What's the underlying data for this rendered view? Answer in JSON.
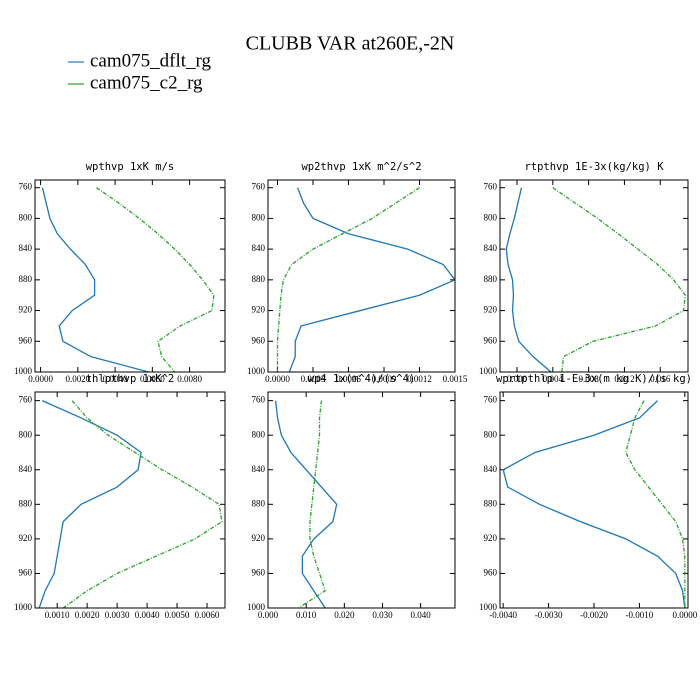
{
  "title": "CLUBB VAR at260E,-2N",
  "chart_data": [
    {
      "type": "profile",
      "title": "wpthvp   1xK m/s",
      "y": [
        760,
        780,
        800,
        820,
        840,
        860,
        880,
        900,
        920,
        940,
        960,
        980,
        1000
      ],
      "series": [
        {
          "name": "cam075_dflt_rg",
          "color": "#1f77b4",
          "linestyle": "solid",
          "values": [
            0.0001,
            0.0003,
            0.0005,
            0.0009,
            0.0016,
            0.0024,
            0.0029,
            0.0029,
            0.0017,
            0.001,
            0.0012,
            0.0027,
            0.0058
          ]
        },
        {
          "name": "cam075_c2_rg",
          "color": "#2ca02c",
          "linestyle": "dashed",
          "values": [
            0.003,
            0.0042,
            0.0053,
            0.0063,
            0.0072,
            0.008,
            0.0087,
            0.0093,
            0.0092,
            0.0075,
            0.0063,
            0.0065,
            0.0072
          ]
        }
      ],
      "xlim": [
        -0.0003,
        0.0099
      ],
      "xticks": [
        {
          "value": 0,
          "label": "0.0000"
        },
        {
          "value": 0.002,
          "label": "0.0020"
        },
        {
          "value": 0.004,
          "label": "0.0040"
        },
        {
          "value": 0.006,
          "label": "0.0060"
        },
        {
          "value": 0.008,
          "label": "0.0080"
        }
      ],
      "ylim": [
        1000,
        750
      ],
      "yticks": [
        760,
        800,
        840,
        880,
        920,
        960,
        1000
      ]
    },
    {
      "type": "profile",
      "title": "wp2thvp   1xK m^2/s^2",
      "y": [
        760,
        780,
        800,
        820,
        840,
        860,
        880,
        900,
        920,
        940,
        960,
        980,
        1000
      ],
      "series": [
        {
          "name": "cam075_dflt_rg",
          "color": "#1f77b4",
          "linestyle": "solid",
          "values": [
            0.00017,
            0.00022,
            0.0003,
            0.0006,
            0.0011,
            0.0014,
            0.0015,
            0.0012,
            0.0007,
            0.0002,
            0.00015,
            0.00015,
            0.0001
          ]
        },
        {
          "name": "cam075_c2_rg",
          "color": "#2ca02c",
          "linestyle": "dashed",
          "values": [
            0.0012,
            0.001,
            0.0008,
            0.00055,
            0.0003,
            0.00012,
            5e-05,
            3e-05,
            2e-05,
            1e-05,
            0,
            0,
            0
          ]
        }
      ],
      "xlim": [
        -8e-05,
        0.0015
      ],
      "xticks": [
        {
          "value": 0,
          "label": "0.0000"
        },
        {
          "value": 0.0003,
          "label": "0.0003"
        },
        {
          "value": 0.0006,
          "label": "0.0006"
        },
        {
          "value": 0.0009,
          "label": "0.0009"
        },
        {
          "value": 0.0012,
          "label": "0.0012"
        },
        {
          "value": 0.0015,
          "label": "0.0015"
        }
      ],
      "ylim": [
        1000,
        750
      ],
      "yticks": [
        760,
        800,
        840,
        880,
        920,
        960,
        1000
      ]
    },
    {
      "type": "profile",
      "title": "rtpthvp   1E-3x(kg/kg) K",
      "y": [
        760,
        780,
        800,
        820,
        840,
        860,
        880,
        900,
        920,
        940,
        960,
        980,
        1000
      ],
      "series": [
        {
          "name": "cam075_dflt_rg",
          "color": "#1f77b4",
          "linestyle": "solid",
          "values": [
            0.0005,
            0.0001,
            -0.0003,
            -0.0008,
            -0.0012,
            -0.001,
            -0.0005,
            -0.0004,
            -0.0005,
            -0.0003,
            0.0002,
            0.0018,
            0.0038
          ]
        },
        {
          "name": "cam075_c2_rg",
          "color": "#2ca02c",
          "linestyle": "dashed",
          "values": [
            0.004,
            0.0065,
            0.009,
            0.0113,
            0.0135,
            0.0157,
            0.0175,
            0.0188,
            0.0186,
            0.0155,
            0.0085,
            0.0052,
            0.005
          ]
        }
      ],
      "xlim": [
        -0.0019,
        0.0191
      ],
      "xticks": [
        {
          "value": 0,
          "label": "0.000"
        },
        {
          "value": 0.004,
          "label": "0.004"
        },
        {
          "value": 0.008,
          "label": "0.008"
        },
        {
          "value": 0.012,
          "label": "0.012"
        },
        {
          "value": 0.016,
          "label": "0.016"
        }
      ],
      "ylim": [
        1000,
        750
      ],
      "yticks": [
        760,
        800,
        840,
        880,
        920,
        960,
        1000
      ]
    },
    {
      "type": "profile",
      "title": "thlpthvp   1xK^2",
      "y": [
        760,
        780,
        800,
        820,
        840,
        860,
        880,
        900,
        920,
        940,
        960,
        980,
        1000
      ],
      "series": [
        {
          "name": "cam075_dflt_rg",
          "color": "#1f77b4",
          "linestyle": "solid",
          "values": [
            0.0005,
            0.0018,
            0.003,
            0.0038,
            0.0037,
            0.003,
            0.0018,
            0.0012,
            0.0011,
            0.001,
            0.0009,
            0.0006,
            0.0004
          ]
        },
        {
          "name": "cam075_c2_rg",
          "color": "#2ca02c",
          "linestyle": "dashed",
          "values": [
            0.0015,
            0.002,
            0.0027,
            0.0036,
            0.0045,
            0.0055,
            0.0064,
            0.0065,
            0.0056,
            0.0043,
            0.003,
            0.002,
            0.0012
          ]
        }
      ],
      "xlim": [
        0.00026,
        0.0066
      ],
      "xticks": [
        {
          "value": 0.001,
          "label": "0.0010"
        },
        {
          "value": 0.002,
          "label": "0.0020"
        },
        {
          "value": 0.003,
          "label": "0.0030"
        },
        {
          "value": 0.004,
          "label": "0.0040"
        },
        {
          "value": 0.005,
          "label": "0.0050"
        },
        {
          "value": 0.006,
          "label": "0.0060"
        }
      ],
      "ylim": [
        1000,
        750
      ],
      "yticks": [
        760,
        800,
        840,
        880,
        920,
        960,
        1000
      ]
    },
    {
      "type": "profile",
      "title": "wp4   1x(m^4)/(s^4)",
      "y": [
        760,
        780,
        800,
        820,
        840,
        860,
        880,
        900,
        920,
        940,
        960,
        980,
        1000
      ],
      "series": [
        {
          "name": "cam075_dflt_rg",
          "color": "#1f77b4",
          "linestyle": "solid",
          "values": [
            0.002,
            0.0025,
            0.0035,
            0.006,
            0.01,
            0.014,
            0.018,
            0.017,
            0.012,
            0.009,
            0.009,
            0.012,
            0.015
          ]
        },
        {
          "name": "cam075_c2_rg",
          "color": "#2ca02c",
          "linestyle": "dashed",
          "values": [
            0.014,
            0.0135,
            0.0135,
            0.013,
            0.0125,
            0.012,
            0.0115,
            0.011,
            0.011,
            0.012,
            0.0135,
            0.015,
            0.008
          ]
        }
      ],
      "xlim": [
        0,
        0.049
      ],
      "xticks": [
        {
          "value": 0,
          "label": "0.000"
        },
        {
          "value": 0.01,
          "label": "0.010"
        },
        {
          "value": 0.02,
          "label": "0.020"
        },
        {
          "value": 0.03,
          "label": "0.030"
        },
        {
          "value": 0.04,
          "label": "0.040"
        }
      ],
      "ylim": [
        1000,
        750
      ],
      "yticks": [
        760,
        800,
        840,
        880,
        920,
        960,
        1000
      ]
    },
    {
      "type": "profile",
      "title": "wprtpthlp   1-E-3x(m kg K)/(s kg)",
      "y": [
        760,
        780,
        800,
        820,
        840,
        860,
        880,
        900,
        920,
        940,
        960,
        980,
        1000
      ],
      "series": [
        {
          "name": "cam075_dflt_rg",
          "color": "#1f77b4",
          "linestyle": "solid",
          "values": [
            -0.0006,
            -0.001,
            -0.002,
            -0.0033,
            -0.004,
            -0.0039,
            -0.0032,
            -0.0023,
            -0.0013,
            -0.0006,
            -0.0002,
            -5e-05,
            0
          ]
        },
        {
          "name": "cam075_c2_rg",
          "color": "#2ca02c",
          "linestyle": "dashed",
          "values": [
            -0.0009,
            -0.0011,
            -0.0012,
            -0.0013,
            -0.0011,
            -0.0008,
            -0.0005,
            -0.0002,
            -5e-05,
            0,
            0,
            0,
            0
          ]
        }
      ],
      "xlim": [
        -0.00407,
        7e-05
      ],
      "xticks": [
        {
          "value": -0.004,
          "label": "-0.0040"
        },
        {
          "value": -0.003,
          "label": "-0.0030"
        },
        {
          "value": -0.002,
          "label": "-0.0020"
        },
        {
          "value": -0.001,
          "label": "-0.0010"
        },
        {
          "value": 0,
          "label": "0.0000"
        }
      ],
      "ylim": [
        1000,
        750
      ],
      "yticks": [
        760,
        800,
        840,
        880,
        920,
        960,
        1000
      ]
    }
  ]
}
